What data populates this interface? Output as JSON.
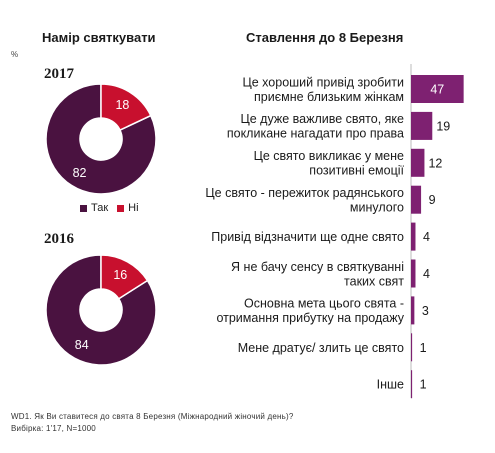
{
  "left_title": "Намір святкувати",
  "right_title": "Ставлення до 8 Березня",
  "percent_sign": "%",
  "colors": {
    "yes": "#4a1240",
    "no": "#c8102e",
    "bar": "#7e2171",
    "axis": "#bbbbbb"
  },
  "legend": {
    "yes": "Так",
    "no": "Ні"
  },
  "chart_data": [
    {
      "type": "pie",
      "title": "2017",
      "categories": [
        "Так",
        "Ні"
      ],
      "values": [
        82,
        18
      ]
    },
    {
      "type": "pie",
      "title": "2016",
      "categories": [
        "Так",
        "Ні"
      ],
      "values": [
        84,
        16
      ]
    },
    {
      "type": "bar",
      "orientation": "horizontal",
      "categories": [
        [
          "Це хороший привід зробити",
          "приємне близьким жінкам"
        ],
        [
          "Це дуже важливе свято, яке",
          "покликане нагадати про права"
        ],
        [
          "Це свято викликає у мене",
          "позитивні емоції"
        ],
        [
          "Це свято - пережиток радянського",
          "минулого"
        ],
        [
          "Привід відзначити ще одне свято"
        ],
        [
          "Я не бачу сенсу в святкуванні",
          "таких свят"
        ],
        [
          "Основна мета цього свята -",
          "отримання прибутку на продажу"
        ],
        [
          "Мене дратує/ злить це свято"
        ],
        [
          "Інше"
        ]
      ],
      "values": [
        47,
        19,
        12,
        9,
        4,
        4,
        3,
        1,
        1
      ],
      "xlim": [
        0,
        50
      ]
    }
  ],
  "footnote": {
    "line1": "WD1. Як Ви ставитеся до свята 8 Березня (Міжнародний жіночий день)?",
    "line2": "Вибірка: 1'17, N=1000"
  }
}
